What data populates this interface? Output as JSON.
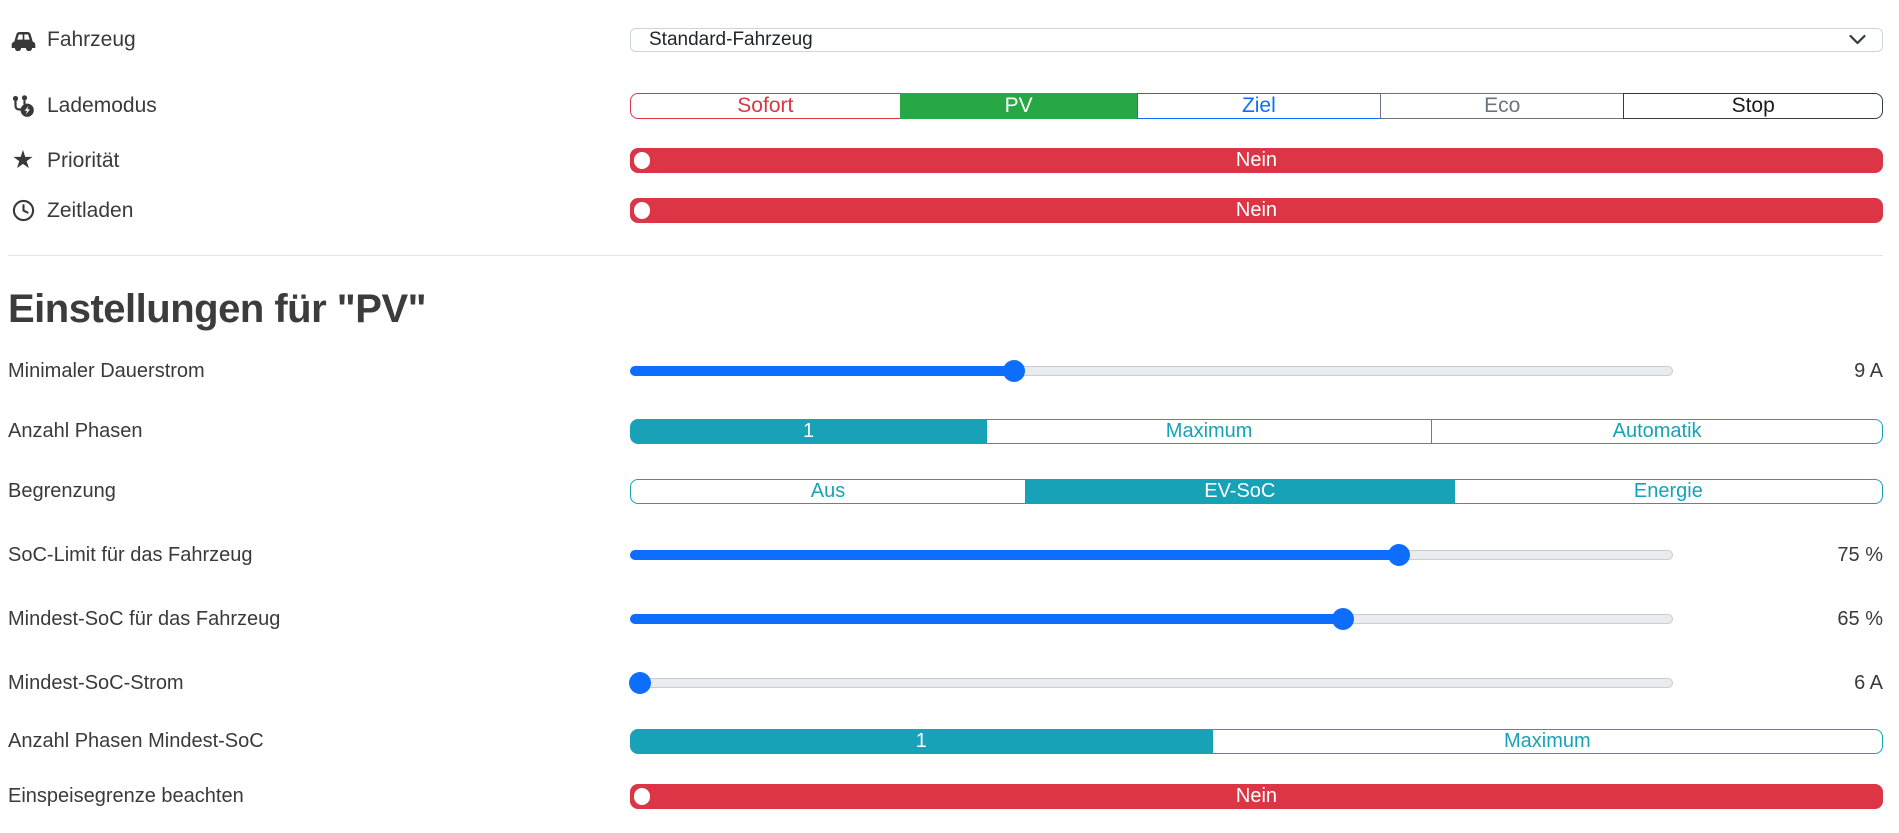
{
  "colors": {
    "red": "#dc3545",
    "green": "#28a745",
    "blue": "#0d6efd",
    "teal": "#17a2b8",
    "text": "#3a3a3a"
  },
  "fahrzeug": {
    "label": "Fahrzeug",
    "selected": "Standard-Fahrzeug"
  },
  "lademodus": {
    "label": "Lademodus",
    "options": [
      {
        "label": "Sofort",
        "active": false
      },
      {
        "label": "PV",
        "active": true
      },
      {
        "label": "Ziel",
        "active": false
      },
      {
        "label": "Eco",
        "active": false
      },
      {
        "label": "Stop",
        "active": false
      }
    ]
  },
  "prioritaet": {
    "label": "Priorität",
    "value": "Nein",
    "active": false
  },
  "zeitladen": {
    "label": "Zeitladen",
    "value": "Nein",
    "active": false
  },
  "heading": "Einstellungen für \"PV\"",
  "settings": {
    "min_current": {
      "label": "Minimaler Dauerstrom",
      "value": "9 A",
      "fraction": 0.368
    },
    "phases": {
      "label": "Anzahl Phasen",
      "options": [
        {
          "label": "1",
          "active": true
        },
        {
          "label": "Maximum",
          "active": false
        },
        {
          "label": "Automatik",
          "active": false
        }
      ]
    },
    "limit": {
      "label": "Begrenzung",
      "options": [
        {
          "label": "Aus",
          "active": false
        },
        {
          "label": "EV-SoC",
          "active": true
        },
        {
          "label": "Energie",
          "active": false
        }
      ]
    },
    "soc_limit": {
      "label": "SoC-Limit für das Fahrzeug",
      "value": "75 %",
      "fraction": 0.737
    },
    "min_soc": {
      "label": "Mindest-SoC für das Fahrzeug",
      "value": "65 %",
      "fraction": 0.684
    },
    "min_soc_current": {
      "label": "Mindest-SoC-Strom",
      "value": "6 A",
      "fraction": 0.01
    },
    "phases_min_soc": {
      "label": "Anzahl Phasen Mindest-SoC",
      "options": [
        {
          "label": "1",
          "active": true
        },
        {
          "label": "Maximum",
          "active": false
        }
      ]
    },
    "feed_in_limit": {
      "label": "Einspeisegrenze beachten",
      "value": "Nein",
      "active": false
    }
  }
}
